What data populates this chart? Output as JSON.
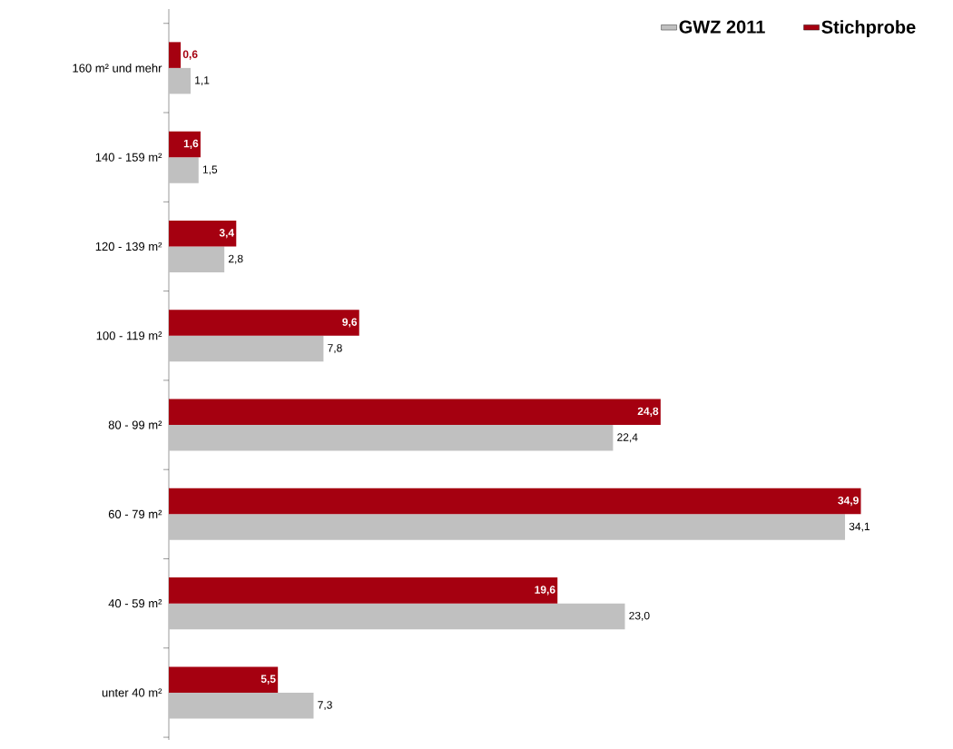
{
  "chart_data": {
    "type": "bar",
    "orientation": "horizontal",
    "categories": [
      "160 m² und mehr",
      "140 - 159 m²",
      "120 - 139 m²",
      "100 - 119 m²",
      "80 - 99 m²",
      "60 - 79 m²",
      "40 - 59 m²",
      "unter 40 m²"
    ],
    "legend": "top right",
    "tick_labels": "y",
    "series": [
      {
        "name": "GWZ 2011",
        "color": "#c0c0c0",
        "values": [
          1.1,
          1.5,
          2.8,
          7.8,
          22.4,
          34.1,
          23.0,
          7.3
        ],
        "value_labels": [
          "1,1",
          "1,5",
          "2,8",
          "7,8",
          "22,4",
          "34,1",
          "23,0",
          "7,3"
        ]
      },
      {
        "name": "Stichprobe",
        "color": "#a50010",
        "values": [
          0.6,
          1.6,
          3.4,
          9.6,
          24.8,
          34.9,
          19.6,
          5.5
        ],
        "value_labels": [
          "0,6",
          "1,6",
          "3,4",
          "9,6",
          "24,8",
          "34,9",
          "19,6",
          "5,5"
        ]
      }
    ]
  }
}
